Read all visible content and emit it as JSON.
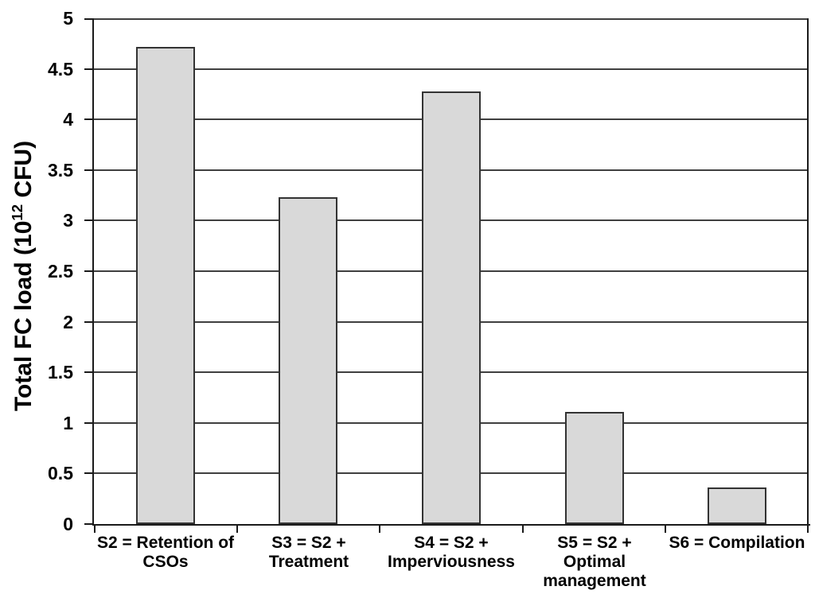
{
  "chart_data": {
    "type": "bar",
    "title": "",
    "xlabel": "",
    "ylabel": {
      "prefix": "Total FC load (10",
      "sup": "12",
      "suffix": " CFU)"
    },
    "categories": [
      "S2 = Retention of\nCSOs",
      "S3 = S2 +\nTreatment",
      "S4 = S2 +\nImperviousness",
      "S5 = S2 +\nOptimal\nmanagement",
      "S6 = Compilation"
    ],
    "values": [
      4.72,
      3.23,
      4.28,
      1.11,
      0.36
    ],
    "ylim": [
      0,
      5
    ],
    "ytick_step": 0.5,
    "ytick_labels": [
      "0",
      "0.5",
      "1",
      "1.5",
      "2",
      "2.5",
      "3",
      "3.5",
      "4",
      "4.5",
      "5"
    ],
    "grid": true,
    "legend": "none",
    "colors": {
      "bar_fill": "#d9d9d9",
      "bar_border": "#333333",
      "grid_color": "#3f3f3f",
      "axis_color": "#1a1a1a",
      "text_color": "#000000",
      "background": "#ffffff"
    }
  }
}
